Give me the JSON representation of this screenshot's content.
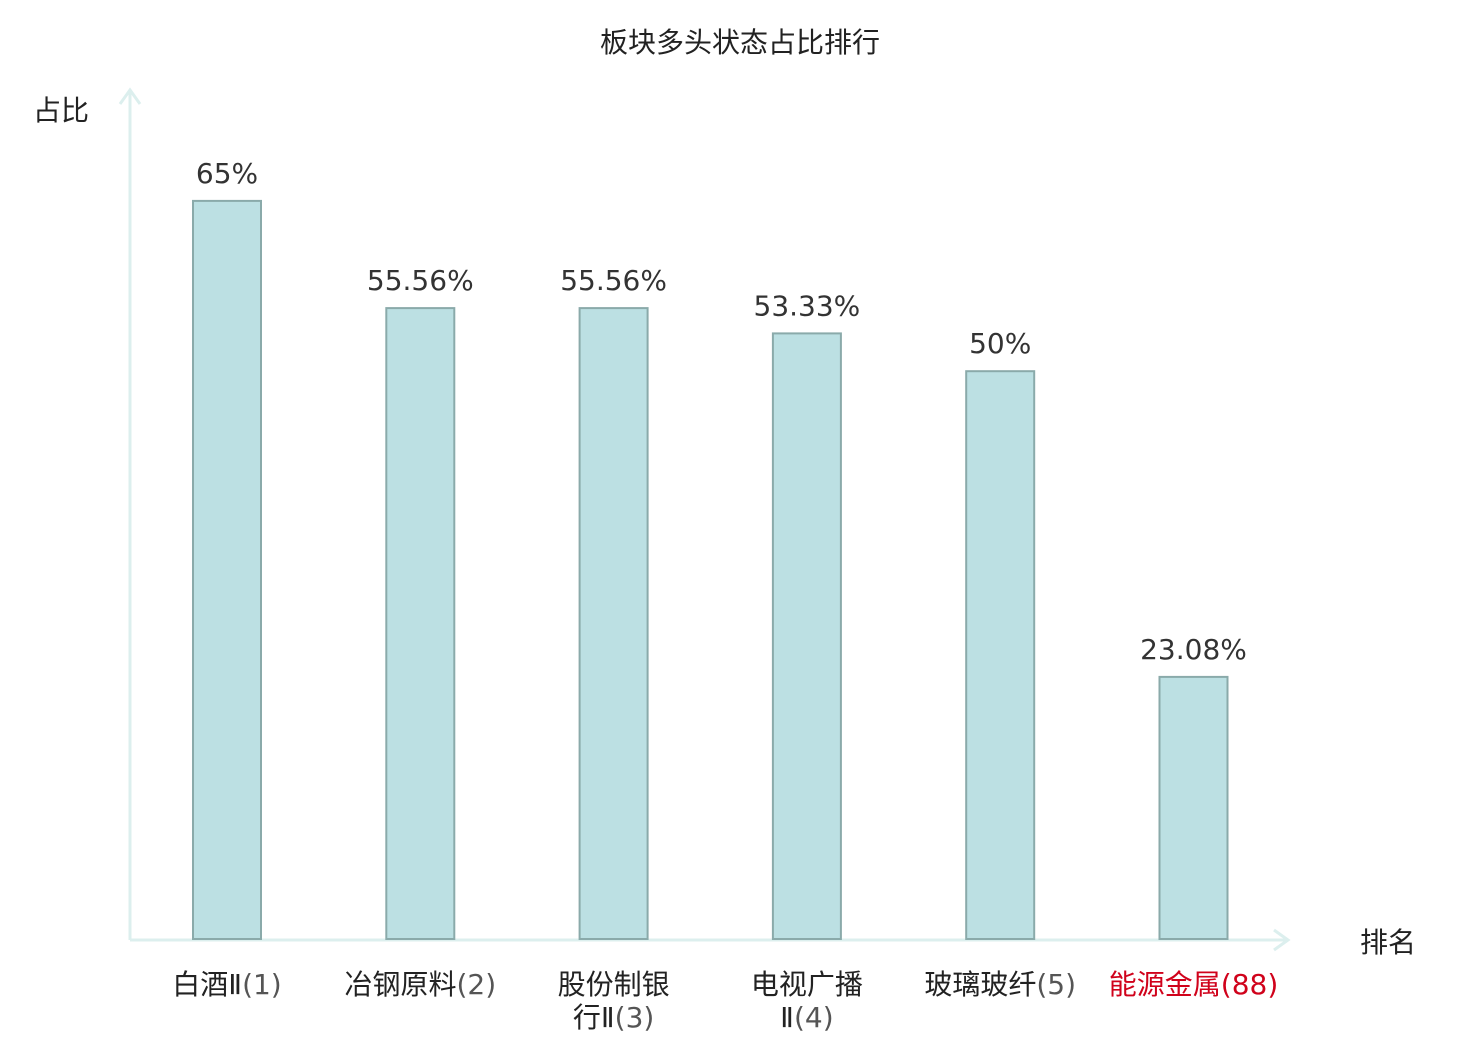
{
  "chart_data": {
    "type": "bar",
    "title": "板块多头状态占比排行",
    "ylabel": "占比",
    "xlabel": "排名",
    "ylim": [
      0,
      76
    ],
    "grid": false,
    "categories": [
      {
        "name_lines": [
          "白酒Ⅱ"
        ],
        "rank": "(1)",
        "highlight": false
      },
      {
        "name_lines": [
          "冶钢原料"
        ],
        "rank": "(2)",
        "highlight": false
      },
      {
        "name_lines": [
          "股份制银",
          "行Ⅱ"
        ],
        "rank": "(3)",
        "highlight": false
      },
      {
        "name_lines": [
          "电视广播",
          "Ⅱ"
        ],
        "rank": "(4)",
        "highlight": false
      },
      {
        "name_lines": [
          "玻璃玻纤"
        ],
        "rank": "(5)",
        "highlight": false
      },
      {
        "name_lines": [
          "能源金属"
        ],
        "rank": "(88)",
        "highlight": true
      }
    ],
    "values": [
      65,
      55.56,
      55.56,
      53.33,
      50,
      23.08
    ],
    "value_labels": [
      "65%",
      "55.56%",
      "55.56%",
      "53.33%",
      "50%",
      "23.08%"
    ],
    "colors": {
      "bar_fill": "#bce0e3",
      "bar_stroke": "#8aaaaa",
      "axis": "#dcefee",
      "highlight": "#d0021b"
    }
  }
}
